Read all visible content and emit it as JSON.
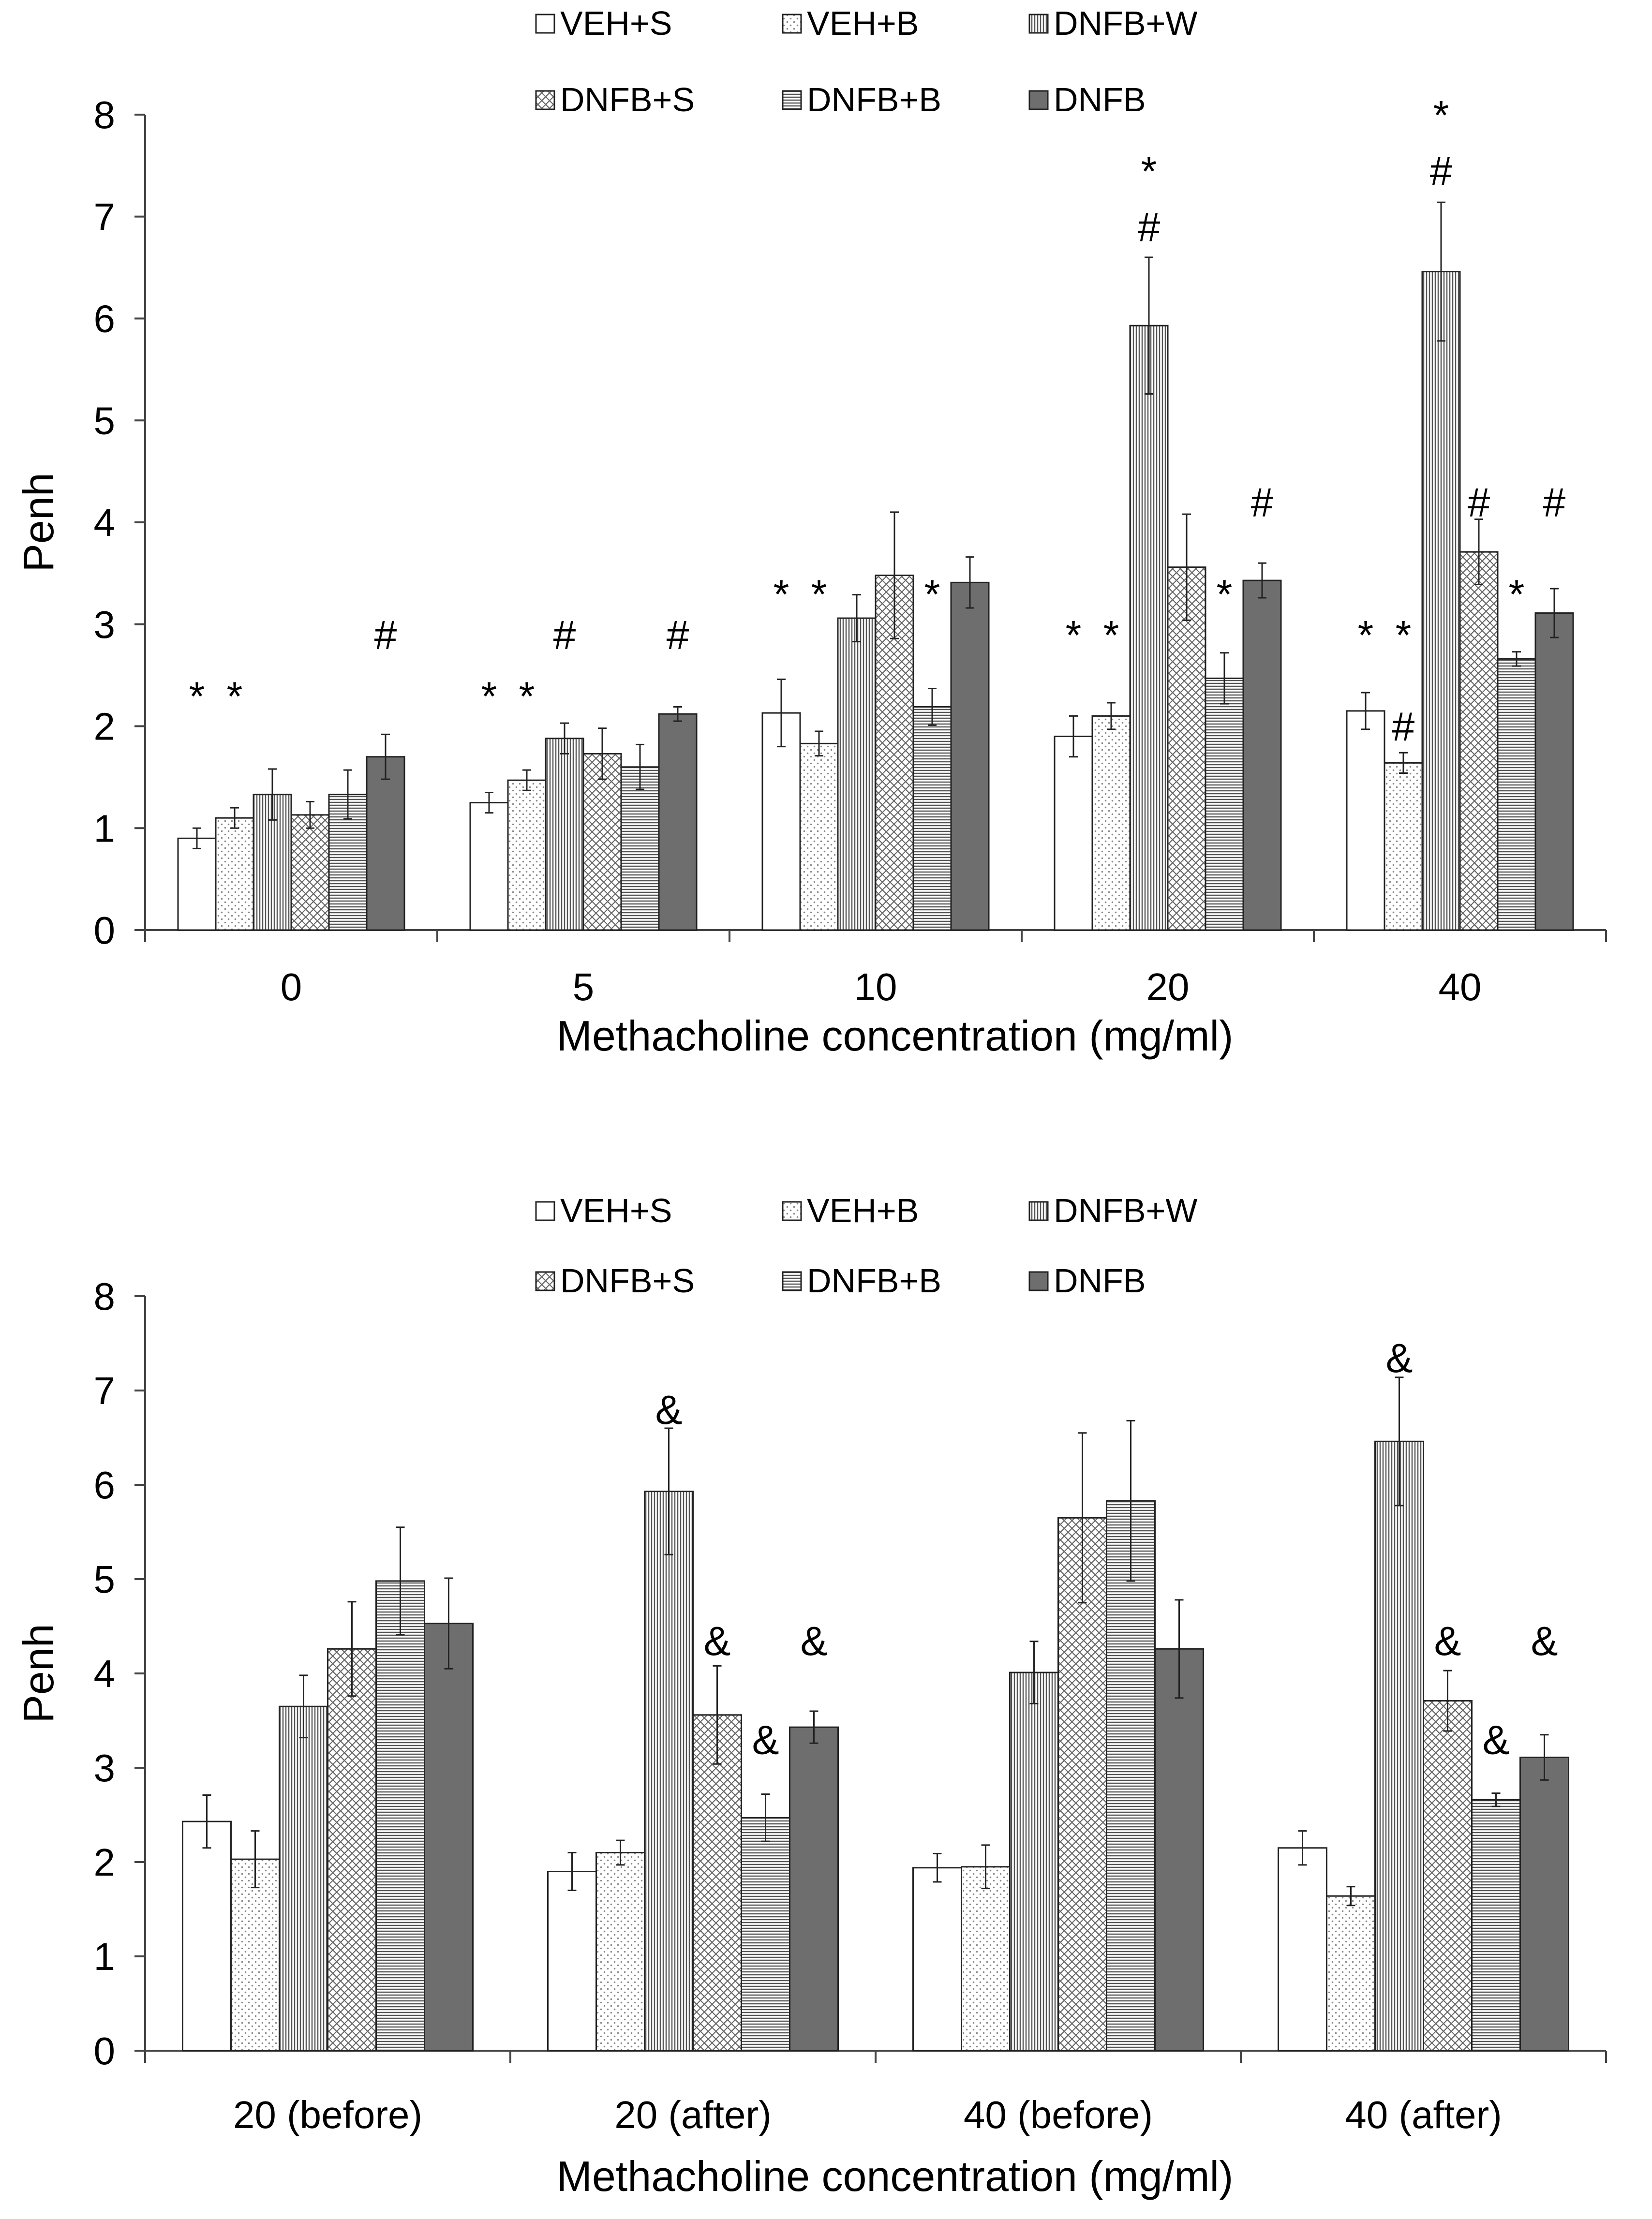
{
  "colors": {
    "axis": "#444444",
    "bar_stroke": "#222222",
    "dark_fill": "#6e6e6e",
    "pattern_line": "#555555",
    "white": "#ffffff"
  },
  "chart_data": [
    {
      "type": "bar",
      "categories": [
        "0",
        "5",
        "10",
        "20",
        "40"
      ],
      "xlabel": "Methacholine concentration (mg/ml)",
      "ylabel": "Penh",
      "ylim": [
        0,
        8
      ],
      "yticks": [
        0,
        1,
        2,
        3,
        4,
        5,
        6,
        7,
        8
      ],
      "legend": {
        "placement": "top",
        "columns": 3
      },
      "series": [
        {
          "name": "VEH+S",
          "pattern": "empty",
          "values": [
            0.9,
            1.25,
            2.13,
            1.9,
            2.15
          ],
          "errors": [
            0.1,
            0.1,
            0.33,
            0.2,
            0.18
          ]
        },
        {
          "name": "VEH+B",
          "pattern": "dots",
          "values": [
            1.1,
            1.47,
            1.83,
            2.1,
            1.64
          ],
          "errors": [
            0.1,
            0.1,
            0.12,
            0.13,
            0.1
          ]
        },
        {
          "name": "DNFB+W",
          "pattern": "vlines",
          "values": [
            1.33,
            1.88,
            3.06,
            5.93,
            6.46
          ],
          "errors": [
            0.25,
            0.15,
            0.23,
            0.67,
            0.68
          ]
        },
        {
          "name": "DNFB+S",
          "pattern": "cross",
          "values": [
            1.13,
            1.73,
            3.48,
            3.56,
            3.71
          ],
          "errors": [
            0.13,
            0.25,
            0.62,
            0.52,
            0.32
          ]
        },
        {
          "name": "DNFB+B",
          "pattern": "hlines",
          "values": [
            1.33,
            1.6,
            2.19,
            2.47,
            2.66
          ],
          "errors": [
            0.24,
            0.22,
            0.18,
            0.25,
            0.07
          ]
        },
        {
          "name": "DNFB",
          "pattern": "solid",
          "values": [
            1.7,
            2.12,
            3.41,
            3.43,
            3.11
          ],
          "errors": [
            0.22,
            0.07,
            0.25,
            0.17,
            0.24
          ]
        }
      ],
      "annotations": [
        {
          "category": 0,
          "series": 0,
          "level": 2.3,
          "text": "*"
        },
        {
          "category": 0,
          "series": 1,
          "level": 2.3,
          "text": "*"
        },
        {
          "category": 0,
          "series": 5,
          "level": 2.9,
          "text": "#"
        },
        {
          "category": 1,
          "series": 0,
          "level": 2.3,
          "text": "*"
        },
        {
          "category": 1,
          "series": 1,
          "level": 2.3,
          "text": "*"
        },
        {
          "category": 1,
          "series": 2,
          "level": 2.9,
          "text": "#"
        },
        {
          "category": 1,
          "series": 5,
          "level": 2.9,
          "text": "#"
        },
        {
          "category": 2,
          "series": 0,
          "level": 3.3,
          "text": "*"
        },
        {
          "category": 2,
          "series": 1,
          "level": 3.3,
          "text": "*"
        },
        {
          "category": 2,
          "series": 4,
          "level": 3.3,
          "text": "*"
        },
        {
          "category": 3,
          "series": 0,
          "level": 2.9,
          "text": "*"
        },
        {
          "category": 3,
          "series": 1,
          "level": 2.9,
          "text": "*"
        },
        {
          "category": 3,
          "series": 2,
          "level": 6.9,
          "text": "#"
        },
        {
          "category": 3,
          "series": 2,
          "level": 7.45,
          "text": "*"
        },
        {
          "category": 3,
          "series": 4,
          "level": 3.3,
          "text": "*"
        },
        {
          "category": 3,
          "series": 5,
          "level": 4.2,
          "text": "#"
        },
        {
          "category": 4,
          "series": 0,
          "level": 2.9,
          "text": "*"
        },
        {
          "category": 4,
          "series": 1,
          "level": 2.9,
          "text": "*"
        },
        {
          "category": 4,
          "series": 1,
          "level": 2.0,
          "text": "#"
        },
        {
          "category": 4,
          "series": 2,
          "level": 7.45,
          "text": "#"
        },
        {
          "category": 4,
          "series": 2,
          "level": 8.0,
          "text": "*"
        },
        {
          "category": 4,
          "series": 3,
          "level": 4.2,
          "text": "#"
        },
        {
          "category": 4,
          "series": 4,
          "level": 3.3,
          "text": "*"
        },
        {
          "category": 4,
          "series": 5,
          "level": 4.2,
          "text": "#"
        }
      ]
    },
    {
      "type": "bar",
      "categories": [
        "20 (before)",
        "20 (after)",
        "40 (before)",
        "40 (after)"
      ],
      "xlabel": "Methacholine concentration (mg/ml)",
      "ylabel": "Penh",
      "ylim": [
        0,
        8
      ],
      "yticks": [
        0,
        1,
        2,
        3,
        4,
        5,
        6,
        7,
        8
      ],
      "legend": {
        "placement": "top",
        "columns": 3
      },
      "series": [
        {
          "name": "VEH+S",
          "pattern": "empty",
          "values": [
            2.43,
            1.9,
            1.94,
            2.15
          ],
          "errors": [
            0.28,
            0.2,
            0.15,
            0.18
          ]
        },
        {
          "name": "VEH+B",
          "pattern": "dots",
          "values": [
            2.03,
            2.1,
            1.95,
            1.64
          ],
          "errors": [
            0.3,
            0.13,
            0.23,
            0.1
          ]
        },
        {
          "name": "DNFB+W",
          "pattern": "vlines",
          "values": [
            3.65,
            5.93,
            4.01,
            6.46
          ],
          "errors": [
            0.33,
            0.67,
            0.33,
            0.68
          ]
        },
        {
          "name": "DNFB+S",
          "pattern": "cross",
          "values": [
            4.26,
            3.56,
            5.65,
            3.71
          ],
          "errors": [
            0.5,
            0.52,
            0.9,
            0.32
          ]
        },
        {
          "name": "DNFB+B",
          "pattern": "hlines",
          "values": [
            4.98,
            2.47,
            5.83,
            2.66
          ],
          "errors": [
            0.57,
            0.25,
            0.85,
            0.07
          ]
        },
        {
          "name": "DNFB",
          "pattern": "solid",
          "values": [
            4.53,
            3.43,
            4.26,
            3.11
          ],
          "errors": [
            0.48,
            0.17,
            0.52,
            0.24
          ]
        }
      ],
      "annotations": [
        {
          "category": 1,
          "series": 2,
          "level": 6.8,
          "text": "&"
        },
        {
          "category": 1,
          "series": 3,
          "level": 4.35,
          "text": "&"
        },
        {
          "category": 1,
          "series": 4,
          "level": 3.3,
          "text": "&"
        },
        {
          "category": 1,
          "series": 5,
          "level": 4.35,
          "text": "&"
        },
        {
          "category": 3,
          "series": 2,
          "level": 7.35,
          "text": "&"
        },
        {
          "category": 3,
          "series": 3,
          "level": 4.35,
          "text": "&"
        },
        {
          "category": 3,
          "series": 4,
          "level": 3.3,
          "text": "&"
        },
        {
          "category": 3,
          "series": 5,
          "level": 4.35,
          "text": "&"
        }
      ]
    }
  ]
}
